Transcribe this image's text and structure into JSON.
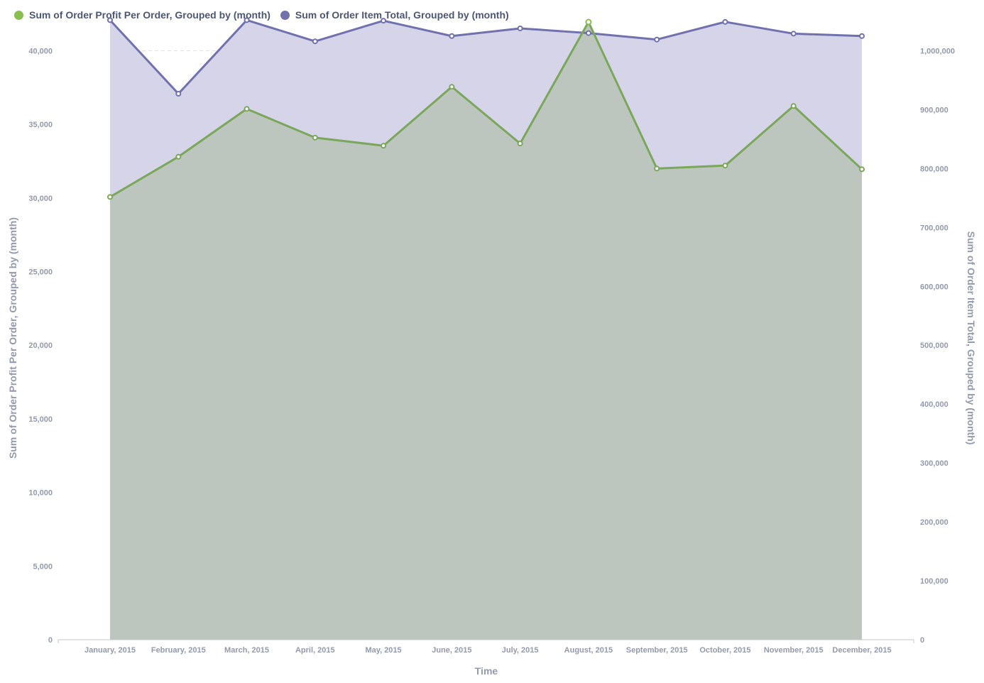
{
  "legend": {
    "profit_label": "Sum of Order Profit Per Order, Grouped by (month)",
    "total_label": "Sum of Order Item Total, Grouped by (month)"
  },
  "colors": {
    "profit": "#88bf4d",
    "profit_line": "#7ba75b",
    "total": "#7172ad",
    "area_total": "#d5d4e8",
    "area_profit": "#bcc6bf",
    "tick": "#949aab",
    "axis": "#c3c7d0",
    "grid": "#e0e3eb"
  },
  "chart_data": {
    "type": "area",
    "categories": [
      "January, 2015",
      "February, 2015",
      "March, 2015",
      "April, 2015",
      "May, 2015",
      "June, 2015",
      "July, 2015",
      "August, 2015",
      "September, 2015",
      "October, 2015",
      "November, 2015",
      "December, 2015"
    ],
    "series": [
      {
        "name": "Sum of Order Profit Per Order, Grouped by (month)",
        "axis": "left",
        "values": [
          30070,
          32800,
          36050,
          34100,
          33550,
          37550,
          33700,
          41950,
          32000,
          32200,
          36250,
          31950
        ]
      },
      {
        "name": "Sum of Order Item Total, Grouped by (month)",
        "axis": "right",
        "values": [
          1052000,
          927000,
          1052000,
          1016000,
          1051000,
          1025000,
          1038000,
          1030000,
          1019000,
          1049000,
          1029000,
          1025000
        ]
      }
    ],
    "xlabel": "Time",
    "ylabel_left": "Sum of Order Profit Per Order, Grouped by (month)",
    "ylabel_right": "Sum of Order Item Total, Grouped by (month)",
    "ylim_left": [
      0,
      42000
    ],
    "ylim_right": [
      0,
      1050000
    ],
    "yticks_left": [
      "0",
      "5,000",
      "10,000",
      "15,000",
      "20,000",
      "25,000",
      "30,000",
      "35,000",
      "40,000"
    ],
    "yticks_right": [
      "0",
      "100,000",
      "200,000",
      "300,000",
      "400,000",
      "500,000",
      "600,000",
      "700,000",
      "800,000",
      "900,000",
      "1,000,000"
    ],
    "grid": true,
    "legend_position": "top-left"
  }
}
